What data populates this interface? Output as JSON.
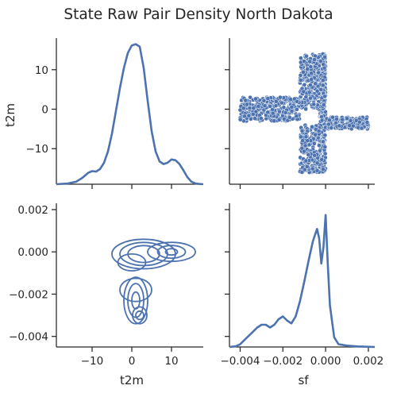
{
  "chart_data": {
    "type": "pairplot",
    "title": "State Raw Pair Density North Dakota",
    "variables": [
      "t2m",
      "sf"
    ],
    "color": "#4c72b0",
    "grid": false,
    "t2m_ticks": [
      -10,
      0,
      10
    ],
    "t2m_range": [
      -19,
      18
    ],
    "sf_ticks": [
      -0.004,
      -0.002,
      0.0,
      0.002
    ],
    "sf_tick_labels": [
      "−0.004",
      "−0.002",
      "0.000",
      "0.002"
    ],
    "sf_range": [
      -0.0045,
      0.0023
    ],
    "t2m_y_tick_labels": [
      "10",
      "0",
      "−10"
    ],
    "t2m_density": {
      "x": [
        -19,
        -16,
        -14,
        -12.5,
        -11,
        -10,
        -9,
        -8,
        -7,
        -6,
        -5,
        -4,
        -3,
        -2,
        -1,
        0,
        1,
        2,
        3,
        4,
        5,
        6,
        7,
        8,
        9,
        10,
        11,
        12,
        13,
        14,
        15,
        16,
        17,
        18
      ],
      "y": [
        0.0,
        0.003,
        0.01,
        0.025,
        0.045,
        0.052,
        0.05,
        0.06,
        0.085,
        0.13,
        0.2,
        0.29,
        0.38,
        0.46,
        0.52,
        0.55,
        0.555,
        0.545,
        0.46,
        0.33,
        0.21,
        0.13,
        0.09,
        0.08,
        0.085,
        0.098,
        0.095,
        0.08,
        0.055,
        0.028,
        0.01,
        0.003,
        0.001,
        0.0
      ]
    },
    "sf_density": {
      "x": [
        -0.0045,
        -0.0042,
        -0.004,
        -0.0038,
        -0.0036,
        -0.0034,
        -0.0032,
        -0.003,
        -0.0028,
        -0.0026,
        -0.0024,
        -0.0022,
        -0.002,
        -0.0018,
        -0.0016,
        -0.0014,
        -0.0012,
        -0.001,
        -0.0008,
        -0.0006,
        -0.0004,
        -0.0003,
        -0.0002,
        -0.0001,
        0.0,
        0.0001,
        0.0002,
        0.0004,
        0.0006,
        0.001,
        0.0015,
        0.0023
      ],
      "y": [
        0.0,
        0.005,
        0.02,
        0.05,
        0.08,
        0.11,
        0.14,
        0.16,
        0.16,
        0.14,
        0.16,
        0.2,
        0.22,
        0.19,
        0.17,
        0.22,
        0.33,
        0.47,
        0.62,
        0.76,
        0.85,
        0.78,
        0.6,
        0.72,
        0.95,
        0.6,
        0.3,
        0.07,
        0.02,
        0.01,
        0.004,
        0.0
      ]
    },
    "scatter_cloud": [
      {
        "x_from": -0.0003,
        "x_to": 0.0,
        "y_from": -16,
        "y_to": 14,
        "n": 260
      },
      {
        "x_from": -0.0012,
        "x_to": 0.0,
        "y_from": 0,
        "y_to": 14,
        "n": 320
      },
      {
        "x_from": -0.0012,
        "x_to": -0.0003,
        "y_from": -16,
        "y_to": -4,
        "n": 200
      },
      {
        "x_from": -0.004,
        "x_to": -0.0012,
        "y_from": -3,
        "y_to": 3,
        "n": 320
      },
      {
        "x_from": 0.0,
        "x_to": 0.002,
        "y_from": -5,
        "y_to": -2,
        "n": 150
      }
    ],
    "kde_contours": [
      {
        "cx": -0.0001,
        "cy": 3,
        "levels": [
          [
            8,
            0.0007
          ],
          [
            6,
            0.00055
          ],
          [
            4,
            0.0004
          ]
        ]
      },
      {
        "cx": -0.0018,
        "cy": 1,
        "levels": [
          [
            4,
            0.00055
          ]
        ]
      },
      {
        "cx": 0.0,
        "cy": 10,
        "levels": [
          [
            6,
            0.00045
          ],
          [
            3.5,
            0.0003
          ],
          [
            1.5,
            0.00015
          ]
        ]
      },
      {
        "cx": -0.0005,
        "cy": 0,
        "levels": [
          [
            3.5,
            0.0004
          ]
        ]
      },
      {
        "cx": -0.0023,
        "cy": 1,
        "levels": [
          [
            3,
            0.0011
          ],
          [
            2,
            0.0008
          ],
          [
            1,
            0.0004
          ]
        ]
      },
      {
        "cx": -0.003,
        "cy": 2,
        "levels": [
          [
            1.8,
            0.0004
          ],
          [
            1,
            0.0002
          ]
        ]
      }
    ]
  }
}
